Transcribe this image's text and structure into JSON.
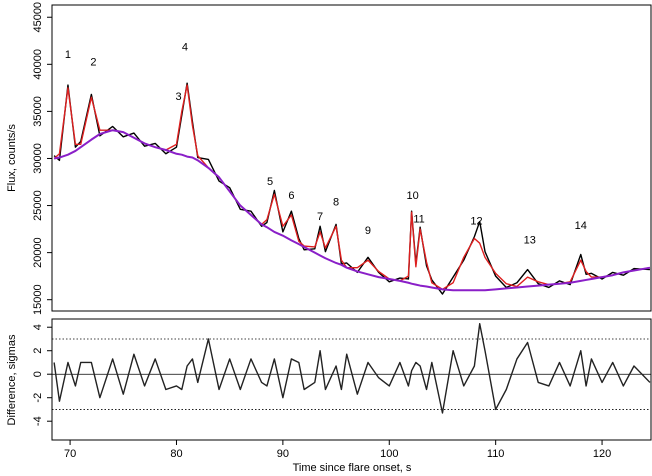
{
  "chart_data": [
    {
      "type": "line",
      "ylabel": "Flux, counts/s",
      "xlim": [
        68.3,
        124.6
      ],
      "ylim": [
        13800,
        46300
      ],
      "yticks": [
        15000,
        20000,
        25000,
        30000,
        35000,
        40000,
        45000
      ],
      "x": [
        68.5,
        69,
        69.8,
        70.5,
        71,
        72,
        72.8,
        74,
        75,
        76,
        77,
        78,
        79,
        80,
        80.5,
        81,
        81.5,
        82,
        83,
        84,
        85,
        86,
        87,
        88,
        88.5,
        89.2,
        90,
        90.8,
        91.5,
        92,
        93,
        93.5,
        94,
        95,
        95.5,
        96,
        97,
        98,
        99,
        100,
        101,
        101.8,
        102.1,
        102.5,
        102.9,
        103.5,
        104,
        105,
        106,
        107,
        108,
        108.5,
        109,
        110,
        111,
        112,
        113,
        114,
        115,
        116,
        117,
        118,
        118.5,
        119,
        120,
        121,
        122,
        123,
        124.5
      ],
      "series": [
        {
          "color": "#000000",
          "values": [
            30300,
            29800,
            37800,
            31200,
            31800,
            36800,
            32400,
            33400,
            32300,
            32700,
            31300,
            31600,
            30500,
            31200,
            34600,
            38000,
            33900,
            30100,
            29900,
            27600,
            26900,
            24600,
            24400,
            22800,
            23200,
            26600,
            22200,
            24400,
            21500,
            20300,
            20400,
            22800,
            20100,
            23000,
            18800,
            18900,
            17900,
            19500,
            17900,
            16900,
            17300,
            17200,
            24400,
            18800,
            22700,
            18600,
            17100,
            15600,
            17400,
            19200,
            21700,
            23300,
            20100,
            17500,
            16300,
            16800,
            18200,
            16700,
            16300,
            17000,
            16600,
            19800,
            17700,
            17800,
            17200,
            17900,
            17600,
            18300,
            18200
          ]
        },
        {
          "color": "#dd1f1f",
          "values": [
            30000,
            30500,
            37500,
            31500,
            31500,
            36500,
            33000,
            33000,
            32800,
            32200,
            31600,
            31200,
            30900,
            31500,
            35000,
            37800,
            33500,
            30300,
            29000,
            28000,
            26500,
            25000,
            24000,
            23000,
            23500,
            26200,
            22800,
            24000,
            21200,
            20700,
            20600,
            22200,
            20500,
            22800,
            19200,
            18400,
            18400,
            19200,
            18000,
            17200,
            17000,
            17500,
            24300,
            18500,
            22500,
            19000,
            16800,
            16100,
            16800,
            19500,
            21500,
            21000,
            19500,
            17800,
            16700,
            16400,
            17400,
            16900,
            16600,
            16700,
            16900,
            19200,
            18000,
            17400,
            17400,
            17600,
            17900,
            18100,
            18400
          ]
        },
        {
          "color": "#8a1fc8",
          "values": [
            30000,
            30100,
            30400,
            30800,
            31200,
            32000,
            32600,
            33000,
            32800,
            32200,
            31600,
            31200,
            30900,
            30500,
            30400,
            30200,
            30100,
            29800,
            29000,
            28000,
            26500,
            25000,
            24000,
            23000,
            22700,
            22200,
            21800,
            21300,
            20900,
            20600,
            20000,
            19700,
            19400,
            18900,
            18700,
            18400,
            18000,
            17700,
            17400,
            17200,
            17000,
            16800,
            16700,
            16600,
            16500,
            16400,
            16300,
            16100,
            16000,
            16000,
            16000,
            16000,
            16000,
            16100,
            16200,
            16300,
            16400,
            16500,
            16600,
            16700,
            16800,
            17000,
            17100,
            17200,
            17400,
            17600,
            17900,
            18100,
            18400
          ]
        }
      ],
      "annotations": [
        {
          "text": "1",
          "x": 69.8,
          "y": 41000
        },
        {
          "text": "2",
          "x": 72.2,
          "y": 40200
        },
        {
          "text": "3",
          "x": 80.2,
          "y": 36500
        },
        {
          "text": "4",
          "x": 80.8,
          "y": 41800
        },
        {
          "text": "5",
          "x": 88.8,
          "y": 27500
        },
        {
          "text": "6",
          "x": 90.8,
          "y": 26000
        },
        {
          "text": "7",
          "x": 93.5,
          "y": 23800
        },
        {
          "text": "8",
          "x": 95,
          "y": 25300
        },
        {
          "text": "9",
          "x": 98,
          "y": 22300
        },
        {
          "text": "10",
          "x": 102.2,
          "y": 26000
        },
        {
          "text": "11",
          "x": 102.8,
          "y": 23500
        },
        {
          "text": "12",
          "x": 108.2,
          "y": 23300
        },
        {
          "text": "13",
          "x": 113.2,
          "y": 21300
        },
        {
          "text": "14",
          "x": 118,
          "y": 22800
        }
      ]
    },
    {
      "type": "line",
      "ylabel": "Difference, sigmas",
      "xlabel": "Time since flare onset, s",
      "xlim": [
        68.3,
        124.6
      ],
      "ylim": [
        -5.6,
        4.7
      ],
      "xticks": [
        70,
        80,
        90,
        100,
        110,
        120
      ],
      "yticks": [
        -4,
        -2,
        0,
        2,
        4
      ],
      "reference_lines": [
        {
          "value": 3,
          "style": "dotted"
        },
        {
          "value": 0,
          "style": "solid"
        },
        {
          "value": -3,
          "style": "dotted"
        }
      ],
      "x": [
        68.5,
        69,
        69.8,
        70.5,
        71,
        72,
        72.8,
        74,
        75,
        76,
        77,
        78,
        79,
        80,
        80.5,
        81,
        81.5,
        82,
        83,
        84,
        85,
        86,
        87,
        88,
        88.5,
        89.2,
        90,
        90.8,
        91.5,
        92,
        93,
        93.5,
        94,
        95,
        95.5,
        96,
        97,
        98,
        99,
        100,
        101,
        101.8,
        102.1,
        102.5,
        102.9,
        103.5,
        104,
        105,
        106,
        107,
        108,
        108.5,
        109,
        110,
        111,
        112,
        113,
        114,
        115,
        116,
        117,
        118,
        118.5,
        119,
        120,
        121,
        122,
        123,
        124.5
      ],
      "series": [
        {
          "color": "#222222",
          "values": [
            1.0,
            -2.3,
            1.0,
            -1.0,
            1.0,
            1.0,
            -2.0,
            1.3,
            -1.7,
            1.7,
            -1.0,
            1.3,
            -1.3,
            -1.0,
            -1.3,
            0.7,
            1.3,
            -0.7,
            3.0,
            -1.3,
            1.3,
            -1.3,
            1.3,
            -0.7,
            -1.0,
            1.3,
            -2.0,
            1.3,
            1.0,
            -1.3,
            -0.7,
            2.0,
            -1.3,
            0.7,
            -1.3,
            1.7,
            -1.7,
            1.0,
            -0.3,
            -1.0,
            1.0,
            -1.0,
            0.3,
            1.0,
            0.7,
            -1.3,
            1.0,
            -3.3,
            2.0,
            -1.0,
            0.7,
            4.3,
            2.0,
            -3.0,
            -1.3,
            1.3,
            2.7,
            -0.7,
            -1.0,
            1.0,
            -1.0,
            2.0,
            -1.0,
            1.3,
            -0.7,
            1.0,
            -1.0,
            0.7,
            -0.7
          ]
        }
      ]
    }
  ]
}
